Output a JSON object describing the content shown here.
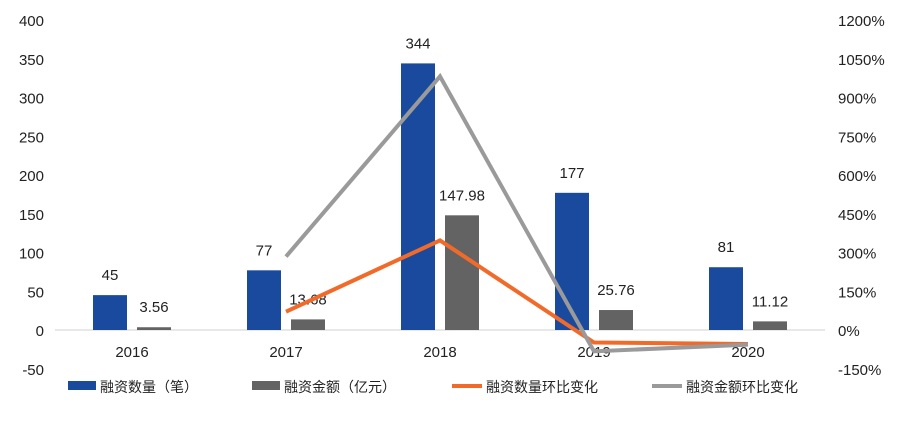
{
  "chart_data": {
    "type": "bar+line",
    "categories": [
      "2016",
      "2017",
      "2018",
      "2019",
      "2020"
    ],
    "y_left": {
      "ticks": [
        -50,
        0,
        50,
        100,
        150,
        200,
        250,
        300,
        350,
        400
      ],
      "range": [
        -50,
        400
      ]
    },
    "y_right": {
      "ticks": [
        "-150%",
        "0%",
        "150%",
        "300%",
        "450%",
        "600%",
        "750%",
        "900%",
        "1050%",
        "1200%"
      ],
      "range": [
        -150,
        1200
      ]
    },
    "series": [
      {
        "name": "融资数量（笔）",
        "type": "bar",
        "axis": "left",
        "color": "#1a4a9e",
        "values": [
          45,
          77,
          344,
          177,
          81
        ],
        "labels": [
          "45",
          "77",
          "344",
          "177",
          "81"
        ]
      },
      {
        "name": "融资金额（亿元）",
        "type": "bar",
        "axis": "left",
        "color": "#636363",
        "values": [
          3.56,
          13.68,
          147.98,
          25.76,
          11.12
        ],
        "labels": [
          "3.56",
          "13.68",
          "147.98",
          "25.76",
          "11.12"
        ]
      },
      {
        "name": "融资数量环比变化",
        "type": "line",
        "axis": "right",
        "color": "#f26a2a",
        "values": [
          null,
          71.1,
          346.8,
          -48.5,
          -54.2
        ]
      },
      {
        "name": "融资金额环比变化",
        "type": "line",
        "axis": "right",
        "color": "#9a9a9a",
        "values": [
          null,
          284.3,
          981.7,
          -82.6,
          -56.8
        ]
      }
    ],
    "legend_position": "bottom",
    "grid": false
  }
}
